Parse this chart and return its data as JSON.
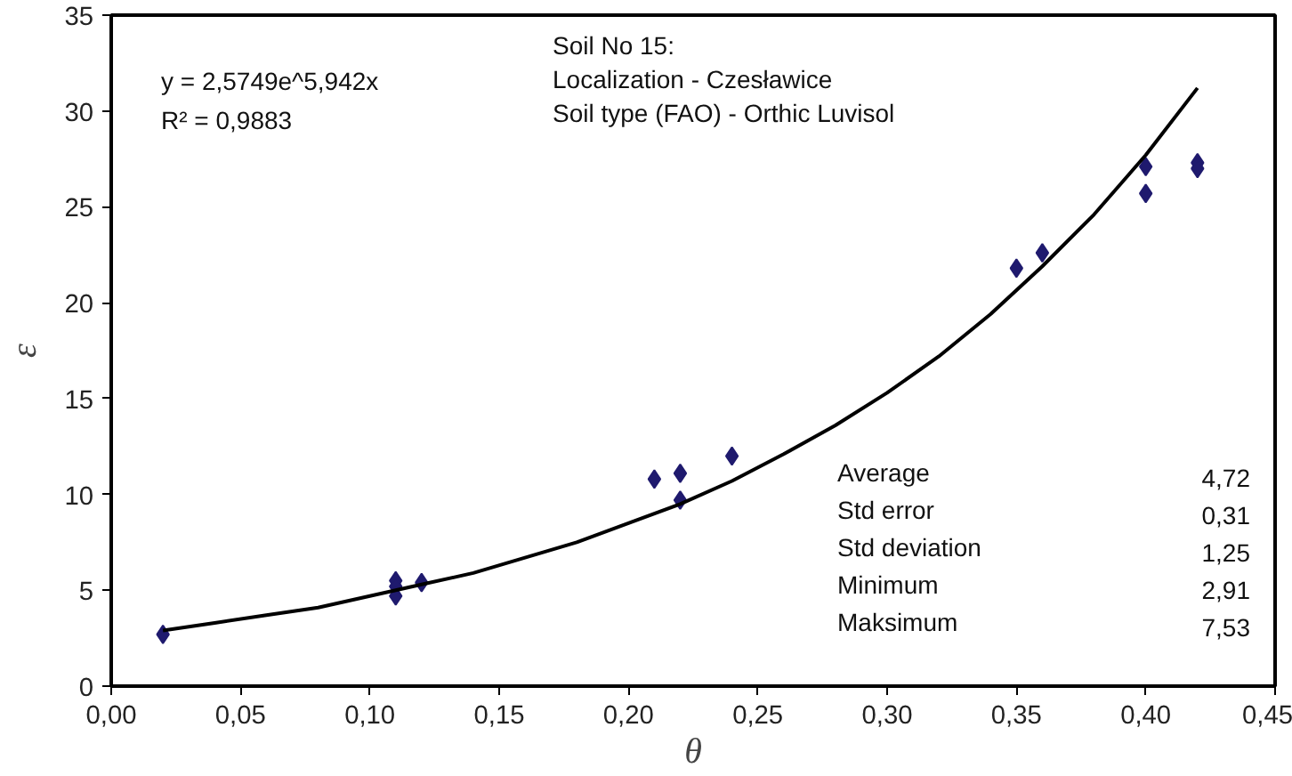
{
  "chart_data": {
    "type": "scatter",
    "xlabel": "θ",
    "ylabel": "ε",
    "xlim": [
      0,
      0.45
    ],
    "ylim": [
      0,
      35
    ],
    "xticks": [
      {
        "value": 0,
        "label": "0,00"
      },
      {
        "value": 0.05,
        "label": "0,05"
      },
      {
        "value": 0.1,
        "label": "0,10"
      },
      {
        "value": 0.15,
        "label": "0,15"
      },
      {
        "value": 0.2,
        "label": "0,20"
      },
      {
        "value": 0.25,
        "label": "0,25"
      },
      {
        "value": 0.3,
        "label": "0,30"
      },
      {
        "value": 0.35,
        "label": "0,35"
      },
      {
        "value": 0.4,
        "label": "0,40"
      },
      {
        "value": 0.45,
        "label": "0,45"
      }
    ],
    "yticks": [
      0,
      5,
      10,
      15,
      20,
      25,
      30,
      35
    ],
    "grid": false,
    "series": [
      {
        "color": "#1f1a6e",
        "marker": "diamond",
        "x": [
          0.02,
          0.11,
          0.11,
          0.11,
          0.12,
          0.21,
          0.22,
          0.22,
          0.24,
          0.35,
          0.36,
          0.4,
          0.4,
          0.42,
          0.42
        ],
        "values": [
          2.7,
          5.5,
          5.2,
          4.7,
          5.4,
          10.8,
          11.1,
          9.7,
          12.0,
          21.8,
          22.6,
          27.1,
          25.7,
          27.3,
          27.0
        ]
      },
      {
        "type": "line",
        "color": "#000000",
        "line_style": "solid",
        "x": [
          0.02,
          0.04,
          0.06,
          0.08,
          0.1,
          0.12,
          0.14,
          0.16,
          0.18,
          0.2,
          0.22,
          0.24,
          0.26,
          0.28,
          0.3,
          0.32,
          0.34,
          0.36,
          0.38,
          0.4,
          0.42
        ],
        "values": [
          2.9,
          3.3,
          3.7,
          4.1,
          4.7,
          5.3,
          5.9,
          6.7,
          7.5,
          8.5,
          9.5,
          10.7,
          12.1,
          13.6,
          15.3,
          17.2,
          19.4,
          21.9,
          24.6,
          27.7,
          31.2
        ]
      }
    ],
    "annotations": [
      "y = 2,5749e^5,942x",
      "R² = 0,9883",
      "Soil No 15:",
      "Localization - Czesławice",
      "Soil type (FAO) - Orthic Luvisol",
      "Average 4,72",
      "Std error 0,31",
      "Std deviation 1,25",
      "Minimum 2,91",
      "Maksimum 7,53"
    ]
  }
}
